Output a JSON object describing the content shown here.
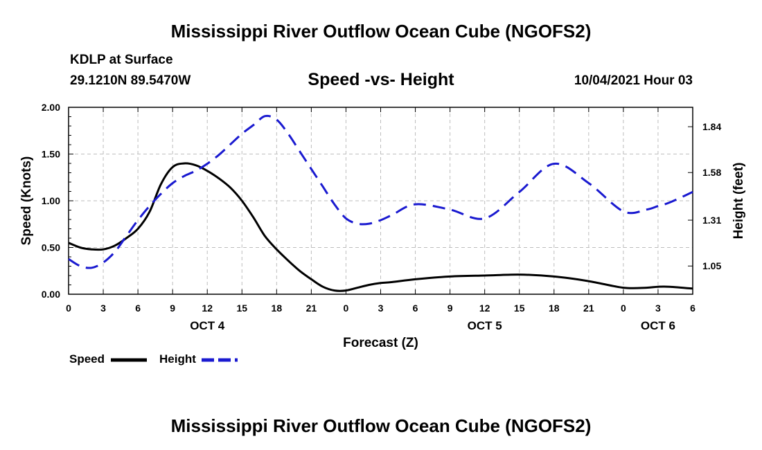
{
  "header": {
    "title_top": "Mississippi River Outflow Ocean Cube (NGOFS2)",
    "title_bottom": "Mississippi River Outflow Ocean Cube (NGOFS2)",
    "station": "KDLP at Surface",
    "coords": "29.1210N  89.5470W",
    "datetime": "10/04/2021 Hour 03"
  },
  "legend": {
    "speed_label": "Speed",
    "height_label": "Height"
  },
  "colors": {
    "speed": "#000000",
    "height": "#1a1ad0",
    "grid": "#bdbdbd"
  },
  "chart_data": {
    "type": "line",
    "title": "Speed -vs- Height",
    "xlabel": "Forecast (Z)",
    "ylabel": "Speed (Knots)",
    "y2label": "Height (feet)",
    "x_unit": "hours since 2021-10-04 00Z",
    "xlim": [
      0,
      54
    ],
    "ylim": [
      0,
      2.0
    ],
    "y2lim": [
      0.89,
      1.95
    ],
    "x_ticks": [
      0,
      3,
      6,
      9,
      12,
      15,
      18,
      21,
      24,
      27,
      30,
      33,
      36,
      39,
      42,
      45,
      48,
      51,
      54
    ],
    "x_tick_labels": [
      "0",
      "3",
      "6",
      "9",
      "12",
      "15",
      "18",
      "21",
      "0",
      "3",
      "6",
      "9",
      "12",
      "15",
      "18",
      "21",
      "0",
      "3",
      "6"
    ],
    "y_ticks": [
      0,
      0.5,
      1.0,
      1.5,
      2.0
    ],
    "y_tick_labels": [
      "0.00",
      "0.50",
      "1.00",
      "1.50",
      "2.00"
    ],
    "y2_ticks": [
      1.05,
      1.31,
      1.58,
      1.84
    ],
    "y2_tick_labels": [
      "1.05",
      "1.31",
      "1.58",
      "1.84"
    ],
    "day_labels": [
      {
        "x": 12,
        "label": "OCT 4"
      },
      {
        "x": 36,
        "label": "OCT 5"
      },
      {
        "x": 51,
        "label": "OCT 6"
      }
    ],
    "series": [
      {
        "name": "Speed",
        "axis": "left",
        "style": "solid",
        "x": [
          0,
          1,
          2,
          3,
          4,
          5,
          6,
          7,
          8,
          9,
          10,
          11,
          12,
          13,
          14,
          15,
          16,
          17,
          18,
          19,
          20,
          21,
          22,
          23,
          24,
          25,
          26,
          27,
          28,
          30,
          33,
          36,
          39,
          42,
          45,
          48,
          50,
          51,
          52,
          54
        ],
        "values": [
          0.55,
          0.5,
          0.48,
          0.48,
          0.52,
          0.6,
          0.7,
          0.88,
          1.18,
          1.36,
          1.4,
          1.38,
          1.32,
          1.24,
          1.14,
          1.0,
          0.82,
          0.62,
          0.48,
          0.36,
          0.25,
          0.16,
          0.08,
          0.04,
          0.04,
          0.07,
          0.1,
          0.12,
          0.13,
          0.16,
          0.19,
          0.2,
          0.21,
          0.19,
          0.14,
          0.07,
          0.07,
          0.08,
          0.08,
          0.06
        ]
      },
      {
        "name": "Height",
        "axis": "right",
        "style": "dashed",
        "x": [
          0,
          1,
          2,
          3,
          4,
          5,
          6,
          7,
          8,
          9,
          10,
          11,
          12,
          13,
          14,
          15,
          16,
          17,
          18,
          19,
          20,
          21,
          22,
          23,
          24,
          25,
          26,
          27,
          28,
          30,
          33,
          36,
          39,
          42,
          45,
          48,
          50,
          51,
          52,
          54
        ],
        "values": [
          1.09,
          1.05,
          1.04,
          1.07,
          1.13,
          1.22,
          1.31,
          1.39,
          1.46,
          1.52,
          1.56,
          1.59,
          1.63,
          1.68,
          1.74,
          1.8,
          1.85,
          1.9,
          1.88,
          1.8,
          1.7,
          1.6,
          1.5,
          1.4,
          1.32,
          1.29,
          1.29,
          1.31,
          1.34,
          1.4,
          1.37,
          1.32,
          1.47,
          1.63,
          1.52,
          1.36,
          1.37,
          1.39,
          1.41,
          1.47
        ]
      }
    ]
  }
}
